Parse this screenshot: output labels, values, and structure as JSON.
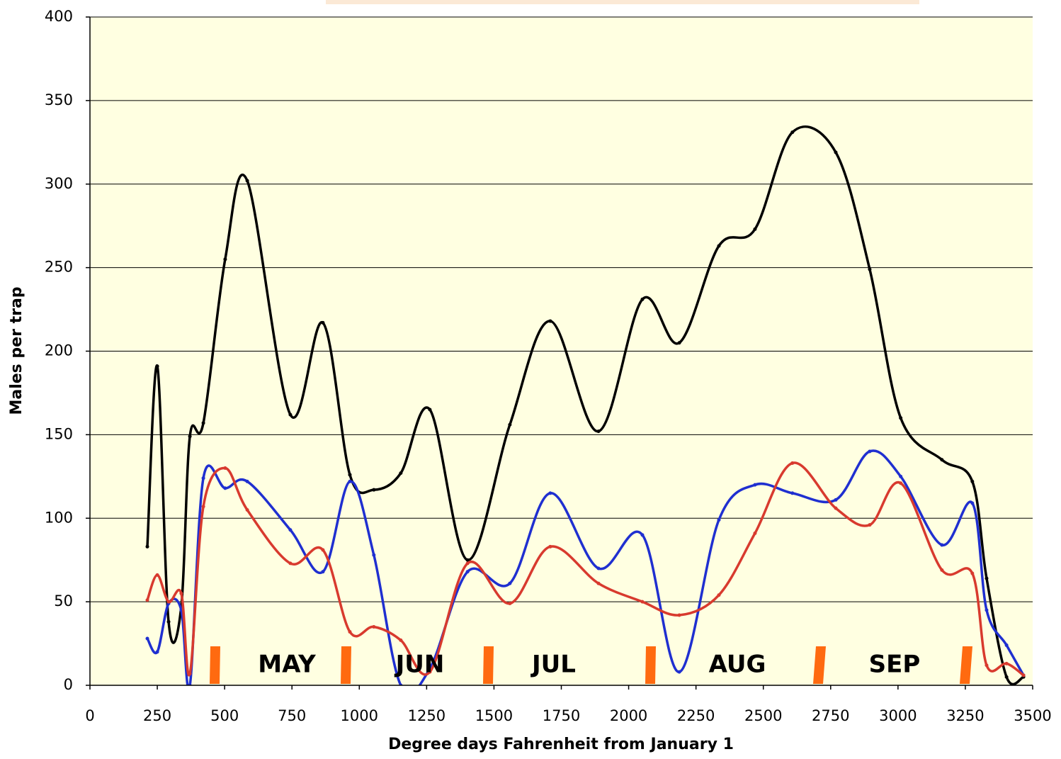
{
  "chart_data": {
    "type": "line",
    "x_label": "Degree days Fahrenheit from January 1",
    "y_label": "Males per trap",
    "x": [
      213,
      250,
      292,
      339,
      371,
      421,
      502,
      584,
      744,
      865,
      965,
      1054,
      1154,
      1262,
      1402,
      1559,
      1709,
      1888,
      2051,
      2188,
      2335,
      2469,
      2608,
      2769,
      2895,
      3010,
      3163,
      3276,
      3329,
      3403,
      3466
    ],
    "series": [
      {
        "color": "#000000",
        "values": [
          83,
          191,
          38,
          47,
          149,
          157,
          255,
          302,
          162,
          217,
          126,
          117,
          127,
          165,
          75,
          156,
          218,
          152,
          231,
          205,
          263,
          273,
          331,
          319,
          249,
          160,
          135,
          122,
          64,
          5,
          5
        ]
      },
      {
        "color": "#1f2fd0",
        "values": [
          28,
          20,
          49,
          45,
          0,
          124,
          118,
          122,
          93,
          68,
          122,
          78,
          0,
          10,
          68,
          61,
          115,
          70,
          90,
          8,
          99,
          120,
          115,
          111,
          140,
          125,
          84,
          109,
          45,
          24,
          6
        ]
      },
      {
        "color": "#d83a2e",
        "values": [
          51,
          66,
          50,
          55,
          7,
          107,
          130,
          105,
          73,
          81,
          32,
          35,
          27,
          8,
          73,
          49,
          83,
          61,
          50,
          42,
          54,
          91,
          133,
          106,
          96,
          121,
          69,
          67,
          12,
          13,
          6
        ]
      }
    ],
    "annotations": [
      "MAY",
      "JUN",
      "JUL",
      "AUG",
      "SEP"
    ],
    "xlim": [
      0,
      3500
    ],
    "xticks": [
      0,
      250,
      500,
      750,
      1000,
      1250,
      1500,
      1750,
      2000,
      2250,
      2500,
      2750,
      3000,
      3250,
      3500
    ],
    "ylim": [
      0,
      400
    ],
    "yticks": [
      0,
      50,
      100,
      150,
      200,
      250,
      300,
      350,
      400
    ],
    "grid": true,
    "smooth": true
  }
}
